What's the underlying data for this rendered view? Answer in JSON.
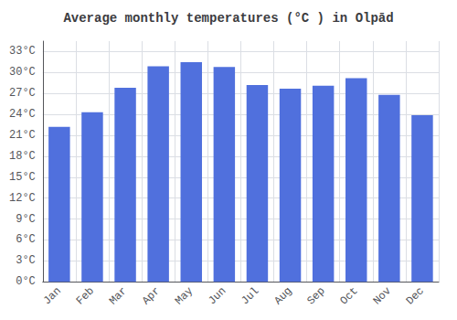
{
  "chart_data": {
    "type": "bar",
    "title": "Average monthly temperatures (°C ) in Olpād",
    "categories": [
      "Jan",
      "Feb",
      "Mar",
      "Apr",
      "May",
      "Jun",
      "Jul",
      "Aug",
      "Sep",
      "Oct",
      "Nov",
      "Dec"
    ],
    "values": [
      22.2,
      24.3,
      27.8,
      30.9,
      31.5,
      30.8,
      28.2,
      27.7,
      28.1,
      29.2,
      26.8,
      23.9
    ],
    "ylim": [
      0,
      34.5
    ],
    "yticks": [
      {
        "value": 0,
        "label": "0°C"
      },
      {
        "value": 3,
        "label": "3°C"
      },
      {
        "value": 6,
        "label": "6°C"
      },
      {
        "value": 9,
        "label": "9°C"
      },
      {
        "value": 12,
        "label": "12°C"
      },
      {
        "value": 15,
        "label": "15°C"
      },
      {
        "value": 18,
        "label": "18°C"
      },
      {
        "value": 21,
        "label": "21°C"
      },
      {
        "value": 24,
        "label": "24°C"
      },
      {
        "value": 27,
        "label": "27°C"
      },
      {
        "value": 30,
        "label": "30°C"
      },
      {
        "value": 33,
        "label": "33°C"
      }
    ],
    "grid": true
  }
}
